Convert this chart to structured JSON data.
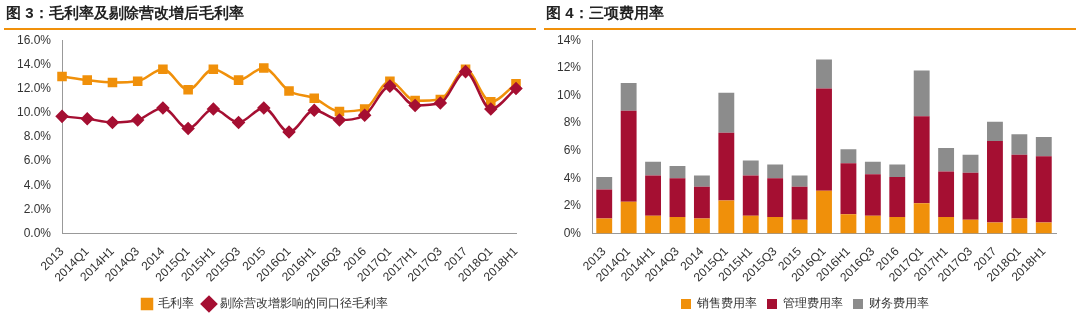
{
  "chart_data": [
    {
      "type": "line",
      "title": "图 3：毛利率及剔除营改增后毛利率",
      "categories": [
        "2013",
        "2014Q1",
        "2014H1",
        "2014Q3",
        "2014",
        "2015Q1",
        "2015H1",
        "2015Q3",
        "2015",
        "2016Q1",
        "2016H1",
        "2016Q3",
        "2016",
        "2017Q1",
        "2017H1",
        "2017Q3",
        "2017",
        "2018Q1",
        "2018H1"
      ],
      "series": [
        {
          "name": "毛利率",
          "color": "#f0900a",
          "marker": "square",
          "values": [
            13.0,
            12.7,
            12.5,
            12.6,
            13.6,
            11.9,
            13.6,
            12.7,
            13.7,
            11.8,
            11.2,
            10.1,
            10.3,
            12.6,
            11.0,
            11.1,
            13.6,
            10.9,
            12.4
          ]
        },
        {
          "name": "剔除营改增影响的同口径毛利率",
          "color": "#a50f32",
          "marker": "diamond",
          "values": [
            9.7,
            9.5,
            9.2,
            9.4,
            10.4,
            8.7,
            10.3,
            9.2,
            10.4,
            8.4,
            10.2,
            9.4,
            9.8,
            12.2,
            10.6,
            10.8,
            13.4,
            10.3,
            12.0
          ]
        }
      ],
      "ylim": [
        0,
        16
      ],
      "yticks": [
        {
          "value": 0,
          "label": "0.0%"
        },
        {
          "value": 2,
          "label": "2.0%"
        },
        {
          "value": 4,
          "label": "4.0%"
        },
        {
          "value": 6,
          "label": "6.0%"
        },
        {
          "value": 8,
          "label": "8.0%"
        },
        {
          "value": 10,
          "label": "10.0%"
        },
        {
          "value": 12,
          "label": "12.0%"
        },
        {
          "value": 14,
          "label": "14.0%"
        },
        {
          "value": 16,
          "label": "16.0%"
        }
      ],
      "grid": false,
      "legend": "bottom",
      "line_style": "solid"
    },
    {
      "type": "bar",
      "stacked": true,
      "title": "图 4：三项费用率",
      "categories": [
        "2013",
        "2014Q1",
        "2014H1",
        "2014Q3",
        "2014",
        "2015Q1",
        "2015H1",
        "2015Q3",
        "2015",
        "2016Q1",
        "2016H1",
        "2016Q3",
        "2016",
        "2017Q1",
        "2017H1",
        "2017Q3",
        "2017",
        "2018Q1",
        "2018H1"
      ],
      "series": [
        {
          "name": "销售费用率",
          "color": "#f0900a",
          "values": [
            1.1,
            2.3,
            1.3,
            1.2,
            1.1,
            2.4,
            1.3,
            1.2,
            1.0,
            3.1,
            1.4,
            1.3,
            1.2,
            2.2,
            1.2,
            1.0,
            0.8,
            1.1,
            0.8
          ]
        },
        {
          "name": "管理费用率",
          "color": "#a50f32",
          "values": [
            2.1,
            6.6,
            2.9,
            2.8,
            2.3,
            4.9,
            2.9,
            2.8,
            2.4,
            7.4,
            3.7,
            3.0,
            2.9,
            6.3,
            3.3,
            3.4,
            5.9,
            4.6,
            4.8
          ]
        },
        {
          "name": "财务费用率",
          "color": "#8c8c8c",
          "values": [
            0.9,
            2.0,
            1.0,
            0.9,
            0.8,
            2.9,
            1.1,
            1.0,
            0.8,
            2.1,
            1.0,
            0.9,
            0.9,
            3.3,
            1.7,
            1.3,
            1.4,
            1.5,
            1.4
          ]
        }
      ],
      "ylim": [
        0,
        14
      ],
      "yticks": [
        {
          "value": 0,
          "label": "0%"
        },
        {
          "value": 2,
          "label": "2%"
        },
        {
          "value": 4,
          "label": "4%"
        },
        {
          "value": 6,
          "label": "6%"
        },
        {
          "value": 8,
          "label": "8%"
        },
        {
          "value": 10,
          "label": "10%"
        },
        {
          "value": 12,
          "label": "12%"
        },
        {
          "value": 14,
          "label": "14%"
        }
      ],
      "grid": false,
      "legend": "bottom"
    }
  ]
}
